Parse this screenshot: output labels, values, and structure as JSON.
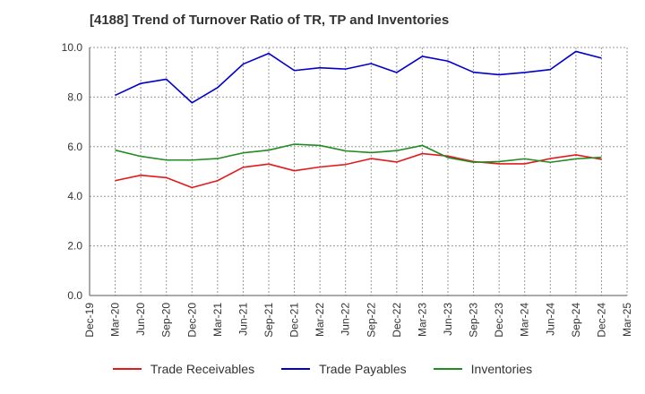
{
  "chart_data": {
    "type": "line",
    "title": "[4188]  Trend of Turnover Ratio of TR, TP and Inventories",
    "xlabel": "",
    "ylabel": "",
    "ylim": [
      0.0,
      10.0
    ],
    "yticks": [
      "0.0",
      "2.0",
      "4.0",
      "6.0",
      "8.0",
      "10.0"
    ],
    "xtick_labels": [
      "Dec-19",
      "Mar-20",
      "Jun-20",
      "Sep-20",
      "Dec-20",
      "Mar-21",
      "Jun-21",
      "Sep-21",
      "Dec-21",
      "Mar-22",
      "Jun-22",
      "Sep-22",
      "Dec-22",
      "Mar-23",
      "Jun-23",
      "Sep-23",
      "Dec-23",
      "Mar-24",
      "Jun-24",
      "Sep-24",
      "Dec-24",
      "Mar-25"
    ],
    "x": [
      "Mar-20",
      "Jun-20",
      "Sep-20",
      "Dec-20",
      "Mar-21",
      "Jun-21",
      "Sep-21",
      "Dec-21",
      "Mar-22",
      "Jun-22",
      "Sep-22",
      "Dec-22",
      "Mar-23",
      "Jun-23",
      "Sep-23",
      "Dec-23",
      "Mar-24",
      "Jun-24",
      "Sep-24",
      "Dec-24"
    ],
    "grid": true,
    "legend_position": "bottom",
    "series": [
      {
        "name": "Trade Receivables",
        "color": "#e31a1c",
        "values": [
          4.63,
          4.85,
          4.75,
          4.35,
          4.63,
          5.17,
          5.3,
          5.03,
          5.18,
          5.28,
          5.52,
          5.38,
          5.72,
          5.62,
          5.4,
          5.31,
          5.31,
          5.52,
          5.67,
          5.49
        ]
      },
      {
        "name": "Trade Payables",
        "color": "#0000cc",
        "values": [
          8.07,
          8.55,
          8.72,
          7.77,
          8.38,
          9.33,
          9.76,
          9.07,
          9.18,
          9.13,
          9.35,
          8.99,
          9.64,
          9.45,
          9.0,
          8.9,
          8.99,
          9.11,
          9.84,
          9.57
        ]
      },
      {
        "name": "Inventories",
        "color": "#228b22",
        "values": [
          5.86,
          5.61,
          5.46,
          5.46,
          5.52,
          5.75,
          5.86,
          6.1,
          6.05,
          5.83,
          5.76,
          5.84,
          6.05,
          5.56,
          5.37,
          5.4,
          5.51,
          5.37,
          5.51,
          5.57
        ]
      }
    ]
  }
}
